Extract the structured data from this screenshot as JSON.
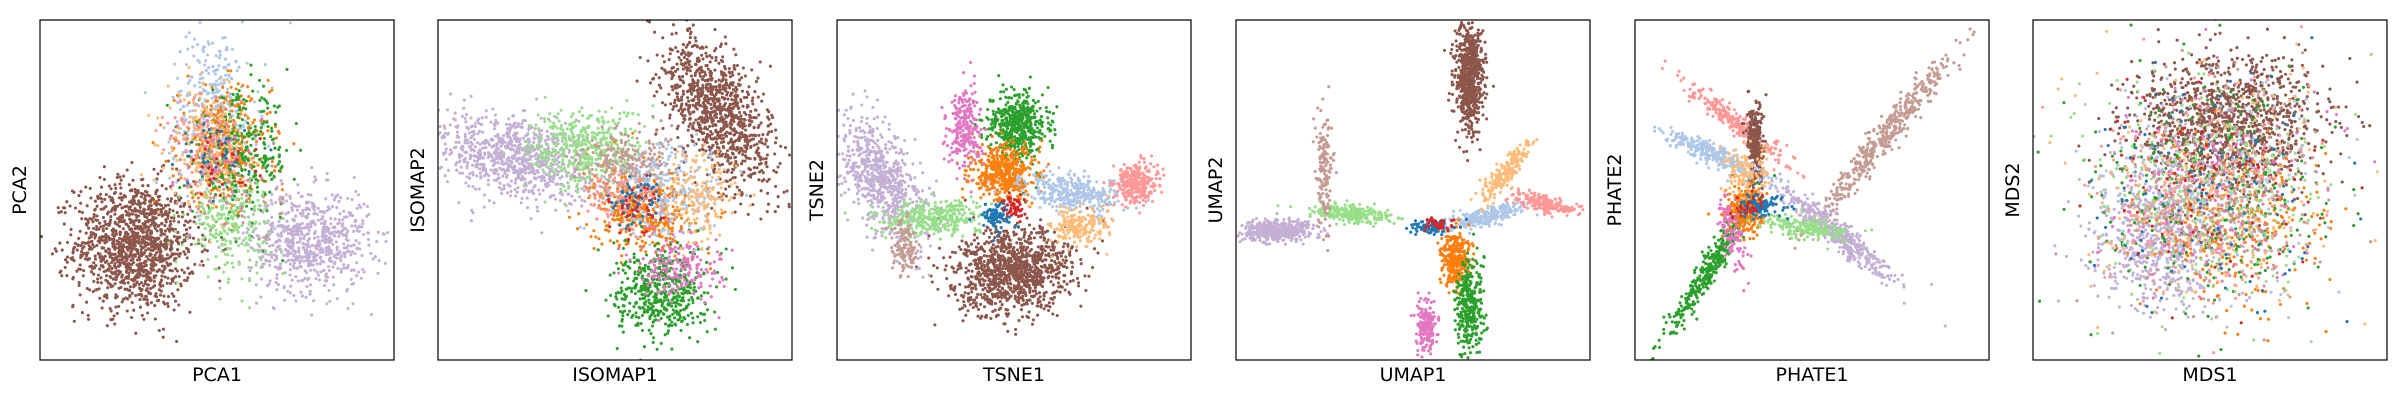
{
  "figure": {
    "panel_count": 6,
    "palette": [
      "#1f77b4",
      "#aec7e8",
      "#ff7f0e",
      "#ffbb78",
      "#2ca02c",
      "#98df8a",
      "#d62728",
      "#ff9896",
      "#9467bd",
      "#c5b0d5",
      "#8c564b",
      "#c49c94",
      "#e377c2"
    ]
  },
  "chart_data": [
    {
      "type": "scatter",
      "title": "",
      "xlabel": "PCA1",
      "ylabel": "PCA2",
      "xlim": [
        0,
        1
      ],
      "ylim": [
        0,
        1
      ],
      "grid": false,
      "ticks": false,
      "legend": "none",
      "clusters": [
        {
          "color": "#8c564b",
          "n": 1300,
          "cx": 0.27,
          "cy": 0.34,
          "sx": 0.085,
          "sy": 0.095,
          "rot": 0
        },
        {
          "color": "#c5b0d5",
          "n": 700,
          "cx": 0.76,
          "cy": 0.35,
          "sx": 0.085,
          "sy": 0.075,
          "rot": 0
        },
        {
          "color": "#aec7e8",
          "n": 360,
          "cx": 0.49,
          "cy": 0.73,
          "sx": 0.06,
          "sy": 0.12,
          "rot": 0
        },
        {
          "color": "#ff7f0e",
          "n": 420,
          "cx": 0.52,
          "cy": 0.62,
          "sx": 0.065,
          "sy": 0.09,
          "rot": 0
        },
        {
          "color": "#2ca02c",
          "n": 300,
          "cx": 0.57,
          "cy": 0.6,
          "sx": 0.07,
          "sy": 0.09,
          "rot": 0
        },
        {
          "color": "#ffbb78",
          "n": 200,
          "cx": 0.47,
          "cy": 0.62,
          "sx": 0.055,
          "sy": 0.08,
          "rot": 0
        },
        {
          "color": "#98df8a",
          "n": 220,
          "cx": 0.53,
          "cy": 0.4,
          "sx": 0.06,
          "sy": 0.07,
          "rot": 0
        },
        {
          "color": "#e377c2",
          "n": 60,
          "cx": 0.5,
          "cy": 0.58,
          "sx": 0.06,
          "sy": 0.08,
          "rot": 0
        },
        {
          "color": "#ff9896",
          "n": 60,
          "cx": 0.45,
          "cy": 0.66,
          "sx": 0.05,
          "sy": 0.06,
          "rot": 0
        },
        {
          "color": "#c49c94",
          "n": 60,
          "cx": 0.55,
          "cy": 0.5,
          "sx": 0.07,
          "sy": 0.08,
          "rot": 0
        },
        {
          "color": "#1f77b4",
          "n": 40,
          "cx": 0.5,
          "cy": 0.6,
          "sx": 0.05,
          "sy": 0.05,
          "rot": 0
        },
        {
          "color": "#d62728",
          "n": 30,
          "cx": 0.52,
          "cy": 0.57,
          "sx": 0.05,
          "sy": 0.05,
          "rot": 0
        }
      ]
    },
    {
      "type": "scatter",
      "title": "",
      "xlabel": "ISOMAP1",
      "ylabel": "ISOMAP2",
      "xlim": [
        0,
        1
      ],
      "ylim": [
        0,
        1
      ],
      "grid": false,
      "ticks": false,
      "legend": "none",
      "clusters": [
        {
          "color": "#8c564b",
          "n": 1000,
          "cx": 0.79,
          "cy": 0.73,
          "sx": 0.06,
          "sy": 0.12,
          "rot": 30
        },
        {
          "color": "#c5b0d5",
          "n": 900,
          "cx": 0.22,
          "cy": 0.6,
          "sx": 0.12,
          "sy": 0.06,
          "rot": -12
        },
        {
          "color": "#98df8a",
          "n": 420,
          "cx": 0.42,
          "cy": 0.62,
          "sx": 0.08,
          "sy": 0.06,
          "rot": 0
        },
        {
          "color": "#ff7f0e",
          "n": 420,
          "cx": 0.58,
          "cy": 0.44,
          "sx": 0.07,
          "sy": 0.06,
          "rot": 0
        },
        {
          "color": "#2ca02c",
          "n": 500,
          "cx": 0.63,
          "cy": 0.2,
          "sx": 0.065,
          "sy": 0.065,
          "rot": 0
        },
        {
          "color": "#e377c2",
          "n": 200,
          "cx": 0.68,
          "cy": 0.28,
          "sx": 0.06,
          "sy": 0.05,
          "rot": 0
        },
        {
          "color": "#c49c94",
          "n": 250,
          "cx": 0.55,
          "cy": 0.58,
          "sx": 0.07,
          "sy": 0.05,
          "rot": 0
        },
        {
          "color": "#aec7e8",
          "n": 220,
          "cx": 0.66,
          "cy": 0.5,
          "sx": 0.08,
          "sy": 0.07,
          "rot": 0
        },
        {
          "color": "#ffbb78",
          "n": 160,
          "cx": 0.74,
          "cy": 0.48,
          "sx": 0.05,
          "sy": 0.07,
          "rot": 0
        },
        {
          "color": "#ff9896",
          "n": 100,
          "cx": 0.52,
          "cy": 0.48,
          "sx": 0.05,
          "sy": 0.04,
          "rot": 0
        },
        {
          "color": "#1f77b4",
          "n": 60,
          "cx": 0.55,
          "cy": 0.46,
          "sx": 0.04,
          "sy": 0.04,
          "rot": 0
        },
        {
          "color": "#d62728",
          "n": 40,
          "cx": 0.56,
          "cy": 0.45,
          "sx": 0.04,
          "sy": 0.04,
          "rot": 0
        }
      ]
    },
    {
      "type": "scatter",
      "title": "",
      "xlabel": "TSNE1",
      "ylabel": "TSNE2",
      "xlim": [
        0,
        1
      ],
      "ylim": [
        0,
        1
      ],
      "grid": false,
      "ticks": false,
      "legend": "none",
      "clusters": [
        {
          "color": "#8c564b",
          "n": 1100,
          "cx": 0.5,
          "cy": 0.26,
          "sx": 0.085,
          "sy": 0.06,
          "rot": 10
        },
        {
          "color": "#c5b0d5",
          "n": 700,
          "cx": 0.13,
          "cy": 0.53,
          "sx": 0.045,
          "sy": 0.1,
          "rot": 25
        },
        {
          "color": "#2ca02c",
          "n": 500,
          "cx": 0.51,
          "cy": 0.69,
          "sx": 0.04,
          "sy": 0.05,
          "rot": 0
        },
        {
          "color": "#ff7f0e",
          "n": 450,
          "cx": 0.47,
          "cy": 0.55,
          "sx": 0.045,
          "sy": 0.04,
          "rot": 0
        },
        {
          "color": "#aec7e8",
          "n": 350,
          "cx": 0.67,
          "cy": 0.49,
          "sx": 0.07,
          "sy": 0.025,
          "rot": -8
        },
        {
          "color": "#ff9896",
          "n": 300,
          "cx": 0.84,
          "cy": 0.52,
          "sx": 0.03,
          "sy": 0.03,
          "rot": 0
        },
        {
          "color": "#98df8a",
          "n": 350,
          "cx": 0.28,
          "cy": 0.42,
          "sx": 0.07,
          "sy": 0.025,
          "rot": 5
        },
        {
          "color": "#e377c2",
          "n": 250,
          "cx": 0.36,
          "cy": 0.68,
          "sx": 0.025,
          "sy": 0.06,
          "rot": 0
        },
        {
          "color": "#ffbb78",
          "n": 200,
          "cx": 0.68,
          "cy": 0.39,
          "sx": 0.04,
          "sy": 0.03,
          "rot": 0
        },
        {
          "color": "#c49c94",
          "n": 120,
          "cx": 0.19,
          "cy": 0.33,
          "sx": 0.02,
          "sy": 0.04,
          "rot": 0
        },
        {
          "color": "#1f77b4",
          "n": 90,
          "cx": 0.45,
          "cy": 0.42,
          "sx": 0.02,
          "sy": 0.02,
          "rot": 0
        },
        {
          "color": "#d62728",
          "n": 50,
          "cx": 0.5,
          "cy": 0.45,
          "sx": 0.015,
          "sy": 0.02,
          "rot": 0
        }
      ]
    },
    {
      "type": "scatter",
      "title": "",
      "xlabel": "UMAP1",
      "ylabel": "UMAP2",
      "xlim": [
        0,
        1
      ],
      "ylim": [
        0,
        1
      ],
      "grid": false,
      "ticks": false,
      "legend": "none",
      "clusters": [
        {
          "color": "#8c564b",
          "n": 700,
          "cx": 0.66,
          "cy": 0.83,
          "sx": 0.02,
          "sy": 0.08,
          "rot": 0
        },
        {
          "color": "#c5b0d5",
          "n": 500,
          "cx": 0.12,
          "cy": 0.38,
          "sx": 0.05,
          "sy": 0.015,
          "rot": 5
        },
        {
          "color": "#98df8a",
          "n": 260,
          "cx": 0.33,
          "cy": 0.43,
          "sx": 0.06,
          "sy": 0.012,
          "rot": -5
        },
        {
          "color": "#aec7e8",
          "n": 260,
          "cx": 0.7,
          "cy": 0.42,
          "sx": 0.06,
          "sy": 0.012,
          "rot": 15
        },
        {
          "color": "#ff9896",
          "n": 200,
          "cx": 0.87,
          "cy": 0.46,
          "sx": 0.04,
          "sy": 0.012,
          "rot": -15
        },
        {
          "color": "#ffbb78",
          "n": 200,
          "cx": 0.76,
          "cy": 0.55,
          "sx": 0.015,
          "sy": 0.06,
          "rot": -40
        },
        {
          "color": "#ff7f0e",
          "n": 300,
          "cx": 0.62,
          "cy": 0.3,
          "sx": 0.02,
          "sy": 0.04,
          "rot": 0
        },
        {
          "color": "#2ca02c",
          "n": 330,
          "cx": 0.66,
          "cy": 0.16,
          "sx": 0.02,
          "sy": 0.07,
          "rot": 0
        },
        {
          "color": "#e377c2",
          "n": 180,
          "cx": 0.54,
          "cy": 0.1,
          "sx": 0.015,
          "sy": 0.035,
          "rot": 0
        },
        {
          "color": "#c49c94",
          "n": 160,
          "cx": 0.25,
          "cy": 0.56,
          "sx": 0.012,
          "sy": 0.08,
          "rot": 0
        },
        {
          "color": "#1f77b4",
          "n": 70,
          "cx": 0.55,
          "cy": 0.39,
          "sx": 0.03,
          "sy": 0.01,
          "rot": 0
        },
        {
          "color": "#d62728",
          "n": 40,
          "cx": 0.57,
          "cy": 0.4,
          "sx": 0.02,
          "sy": 0.01,
          "rot": 0
        }
      ]
    },
    {
      "type": "scatter",
      "title": "",
      "xlabel": "PHATE1",
      "ylabel": "PHATE2",
      "xlim": [
        0,
        1
      ],
      "ylim": [
        0,
        1
      ],
      "grid": false,
      "ticks": false,
      "legend": "none",
      "clusters": [
        {
          "color": "#c49c94",
          "n": 500,
          "cx": 0.7,
          "cy": 0.65,
          "sx": 0.16,
          "sy": 0.018,
          "rot": 52
        },
        {
          "color": "#c5b0d5",
          "n": 450,
          "cx": 0.56,
          "cy": 0.38,
          "sx": 0.1,
          "sy": 0.018,
          "rot": -40
        },
        {
          "color": "#2ca02c",
          "n": 400,
          "cx": 0.21,
          "cy": 0.27,
          "sx": 0.12,
          "sy": 0.015,
          "rot": 60
        },
        {
          "color": "#ff9896",
          "n": 300,
          "cx": 0.28,
          "cy": 0.7,
          "sx": 0.09,
          "sy": 0.015,
          "rot": -40
        },
        {
          "color": "#8c564b",
          "n": 300,
          "cx": 0.34,
          "cy": 0.63,
          "sx": 0.012,
          "sy": 0.06,
          "rot": 0
        },
        {
          "color": "#aec7e8",
          "n": 300,
          "cx": 0.23,
          "cy": 0.6,
          "sx": 0.08,
          "sy": 0.015,
          "rot": -25
        },
        {
          "color": "#ff7f0e",
          "n": 300,
          "cx": 0.31,
          "cy": 0.44,
          "sx": 0.025,
          "sy": 0.035,
          "rot": 0
        },
        {
          "color": "#98df8a",
          "n": 200,
          "cx": 0.47,
          "cy": 0.39,
          "sx": 0.06,
          "sy": 0.015,
          "rot": -10
        },
        {
          "color": "#e377c2",
          "n": 100,
          "cx": 0.28,
          "cy": 0.36,
          "sx": 0.015,
          "sy": 0.06,
          "rot": 15
        },
        {
          "color": "#ffbb78",
          "n": 120,
          "cx": 0.31,
          "cy": 0.55,
          "sx": 0.03,
          "sy": 0.04,
          "rot": 0
        },
        {
          "color": "#1f77b4",
          "n": 100,
          "cx": 0.35,
          "cy": 0.45,
          "sx": 0.04,
          "sy": 0.02,
          "rot": 0
        },
        {
          "color": "#d62728",
          "n": 30,
          "cx": 0.32,
          "cy": 0.45,
          "sx": 0.02,
          "sy": 0.02,
          "rot": 0
        }
      ]
    },
    {
      "type": "scatter",
      "title": "",
      "xlabel": "MDS1",
      "ylabel": "MDS2",
      "xlim": [
        0,
        1
      ],
      "ylim": [
        0,
        1
      ],
      "grid": false,
      "ticks": false,
      "legend": "none",
      "clusters": [
        {
          "color": "#8c564b",
          "n": 1200,
          "cx": 0.55,
          "cy": 0.7,
          "sx": 0.13,
          "sy": 0.1,
          "rot": 0
        },
        {
          "color": "#c5b0d5",
          "n": 700,
          "cx": 0.36,
          "cy": 0.37,
          "sx": 0.1,
          "sy": 0.11,
          "rot": 0
        },
        {
          "color": "#ff7f0e",
          "n": 350,
          "cx": 0.56,
          "cy": 0.4,
          "sx": 0.12,
          "sy": 0.11,
          "rot": 0
        },
        {
          "color": "#2ca02c",
          "n": 300,
          "cx": 0.5,
          "cy": 0.5,
          "sx": 0.16,
          "sy": 0.16,
          "rot": 0
        },
        {
          "color": "#98df8a",
          "n": 300,
          "cx": 0.5,
          "cy": 0.5,
          "sx": 0.16,
          "sy": 0.16,
          "rot": 0
        },
        {
          "color": "#aec7e8",
          "n": 250,
          "cx": 0.5,
          "cy": 0.5,
          "sx": 0.16,
          "sy": 0.16,
          "rot": 0
        },
        {
          "color": "#ffbb78",
          "n": 250,
          "cx": 0.5,
          "cy": 0.5,
          "sx": 0.16,
          "sy": 0.16,
          "rot": 0
        },
        {
          "color": "#e377c2",
          "n": 200,
          "cx": 0.5,
          "cy": 0.5,
          "sx": 0.16,
          "sy": 0.16,
          "rot": 0
        },
        {
          "color": "#ff9896",
          "n": 200,
          "cx": 0.5,
          "cy": 0.5,
          "sx": 0.16,
          "sy": 0.16,
          "rot": 0
        },
        {
          "color": "#c49c94",
          "n": 200,
          "cx": 0.5,
          "cy": 0.5,
          "sx": 0.16,
          "sy": 0.16,
          "rot": 0
        },
        {
          "color": "#1f77b4",
          "n": 120,
          "cx": 0.5,
          "cy": 0.5,
          "sx": 0.16,
          "sy": 0.16,
          "rot": 0
        },
        {
          "color": "#d62728",
          "n": 80,
          "cx": 0.5,
          "cy": 0.5,
          "sx": 0.16,
          "sy": 0.16,
          "rot": 0
        }
      ]
    }
  ]
}
